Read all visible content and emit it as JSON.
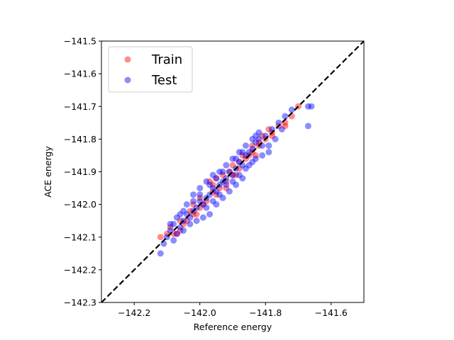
{
  "chart_data": {
    "type": "scatter",
    "title": "",
    "xlabel": "Reference energy",
    "ylabel": "ACE energy",
    "xlim": [
      -142.3,
      -141.5
    ],
    "ylim": [
      -142.3,
      -141.5
    ],
    "xticks": [
      -142.2,
      -142.0,
      -141.8,
      -141.6
    ],
    "yticks": [
      -142.3,
      -142.2,
      -142.1,
      -142.0,
      -141.9,
      -141.8,
      -141.7,
      -141.6,
      -141.5
    ],
    "xtick_labels": [
      "−142.2",
      "−142.0",
      "−141.8",
      "−141.6"
    ],
    "ytick_labels": [
      "−142.3",
      "−142.2",
      "−142.1",
      "−142.0",
      "−141.9",
      "−141.8",
      "−141.7",
      "−141.6",
      "−141.5"
    ],
    "grid": false,
    "legend_position": "top-left",
    "reference_line": {
      "style": "dashed",
      "color": "#000000",
      "from": [
        -142.3,
        -142.3
      ],
      "to": [
        -141.5,
        -141.5
      ]
    },
    "series": [
      {
        "name": "Train",
        "color": "#ff0000",
        "points": [
          [
            -142.12,
            -142.1
          ],
          [
            -142.1,
            -142.09
          ],
          [
            -142.08,
            -142.09
          ],
          [
            -142.06,
            -142.08
          ],
          [
            -142.04,
            -142.05
          ],
          [
            -142.02,
            -142.03
          ],
          [
            -142.0,
            -142.01
          ],
          [
            -141.98,
            -141.99
          ],
          [
            -141.96,
            -141.96
          ],
          [
            -141.94,
            -141.95
          ],
          [
            -141.92,
            -141.93
          ],
          [
            -141.9,
            -141.91
          ],
          [
            -141.88,
            -141.89
          ],
          [
            -141.86,
            -141.86
          ],
          [
            -141.84,
            -141.84
          ],
          [
            -141.82,
            -141.82
          ],
          [
            -141.8,
            -141.8
          ],
          [
            -141.78,
            -141.78
          ],
          [
            -141.76,
            -141.76
          ],
          [
            -141.74,
            -141.75
          ],
          [
            -141.72,
            -141.73
          ],
          [
            -141.7,
            -141.7
          ],
          [
            -141.74,
            -141.76
          ],
          [
            -141.78,
            -141.79
          ],
          [
            -141.82,
            -141.81
          ],
          [
            -141.85,
            -141.85
          ],
          [
            -141.88,
            -141.87
          ],
          [
            -141.91,
            -141.9
          ],
          [
            -141.95,
            -141.92
          ],
          [
            -141.97,
            -141.93
          ],
          [
            -142.0,
            -141.98
          ],
          [
            -142.03,
            -142.02
          ],
          [
            -142.06,
            -142.05
          ],
          [
            -142.09,
            -142.07
          ],
          [
            -142.05,
            -142.06
          ],
          [
            -141.99,
            -142.0
          ],
          [
            -141.93,
            -141.91
          ],
          [
            -141.87,
            -141.85
          ],
          [
            -141.81,
            -141.79
          ],
          [
            -141.83,
            -141.85
          ],
          [
            -141.89,
            -141.91
          ],
          [
            -141.95,
            -141.97
          ],
          [
            -142.01,
            -142.03
          ],
          [
            -142.07,
            -142.09
          ],
          [
            -141.96,
            -141.94
          ],
          [
            -141.9,
            -141.88
          ],
          [
            -141.84,
            -141.82
          ],
          [
            -141.79,
            -141.77
          ],
          [
            -141.92,
            -141.95
          ],
          [
            -142.02,
            -142.0
          ]
        ]
      },
      {
        "name": "Test",
        "color": "#0000ff",
        "points": [
          [
            -142.12,
            -142.15
          ],
          [
            -142.1,
            -142.1
          ],
          [
            -142.09,
            -142.08
          ],
          [
            -142.08,
            -142.06
          ],
          [
            -142.07,
            -142.09
          ],
          [
            -142.06,
            -142.07
          ],
          [
            -142.05,
            -142.05
          ],
          [
            -142.04,
            -142.03
          ],
          [
            -142.03,
            -142.04
          ],
          [
            -142.02,
            -142.02
          ],
          [
            -142.01,
            -142.01
          ],
          [
            -142.0,
            -141.99
          ],
          [
            -141.99,
            -142.0
          ],
          [
            -141.98,
            -141.98
          ],
          [
            -141.97,
            -141.97
          ],
          [
            -141.96,
            -141.95
          ],
          [
            -141.95,
            -141.96
          ],
          [
            -141.94,
            -141.94
          ],
          [
            -141.93,
            -141.93
          ],
          [
            -141.92,
            -141.92
          ],
          [
            -141.91,
            -141.9
          ],
          [
            -141.9,
            -141.91
          ],
          [
            -141.89,
            -141.89
          ],
          [
            -141.88,
            -141.87
          ],
          [
            -141.87,
            -141.88
          ],
          [
            -141.86,
            -141.85
          ],
          [
            -141.85,
            -141.84
          ],
          [
            -141.84,
            -141.83
          ],
          [
            -141.83,
            -141.81
          ],
          [
            -141.82,
            -141.8
          ],
          [
            -141.81,
            -141.82
          ],
          [
            -141.8,
            -141.79
          ],
          [
            -141.78,
            -141.77
          ],
          [
            -141.76,
            -141.75
          ],
          [
            -141.75,
            -141.77
          ],
          [
            -141.74,
            -141.73
          ],
          [
            -141.72,
            -141.71
          ],
          [
            -141.67,
            -141.7
          ],
          [
            -141.66,
            -141.7
          ],
          [
            -141.67,
            -141.76
          ],
          [
            -141.77,
            -141.8
          ],
          [
            -141.79,
            -141.82
          ],
          [
            -141.83,
            -141.79
          ],
          [
            -141.87,
            -141.84
          ],
          [
            -141.89,
            -141.86
          ],
          [
            -141.93,
            -141.9
          ],
          [
            -141.95,
            -141.92
          ],
          [
            -141.97,
            -141.94
          ],
          [
            -142.0,
            -141.97
          ],
          [
            -142.02,
            -141.99
          ],
          [
            -142.05,
            -142.02
          ],
          [
            -142.07,
            -142.04
          ],
          [
            -142.09,
            -142.06
          ],
          [
            -141.99,
            -142.04
          ],
          [
            -141.97,
            -142.03
          ],
          [
            -141.95,
            -142.0
          ],
          [
            -141.93,
            -141.98
          ],
          [
            -141.91,
            -141.96
          ],
          [
            -141.89,
            -141.94
          ],
          [
            -141.87,
            -141.92
          ],
          [
            -141.85,
            -141.88
          ],
          [
            -141.83,
            -141.86
          ],
          [
            -141.81,
            -141.85
          ],
          [
            -141.79,
            -141.84
          ],
          [
            -142.03,
            -142.06
          ],
          [
            -142.01,
            -142.05
          ],
          [
            -141.98,
            -142.01
          ],
          [
            -141.96,
            -141.99
          ],
          [
            -141.94,
            -141.97
          ],
          [
            -141.92,
            -141.94
          ],
          [
            -141.9,
            -141.93
          ],
          [
            -141.88,
            -141.91
          ],
          [
            -141.86,
            -141.89
          ],
          [
            -141.84,
            -141.87
          ],
          [
            -142.06,
            -142.03
          ],
          [
            -142.04,
            -142.0
          ],
          [
            -142.02,
            -141.97
          ],
          [
            -142.0,
            -141.95
          ],
          [
            -141.98,
            -141.93
          ],
          [
            -141.96,
            -141.91
          ],
          [
            -141.94,
            -141.9
          ],
          [
            -141.92,
            -141.88
          ],
          [
            -141.9,
            -141.86
          ],
          [
            -141.88,
            -141.84
          ],
          [
            -141.86,
            -141.82
          ],
          [
            -141.84,
            -141.8
          ],
          [
            -141.82,
            -141.78
          ],
          [
            -142.08,
            -142.11
          ],
          [
            -142.11,
            -142.12
          ],
          [
            -142.05,
            -142.08
          ]
        ]
      }
    ]
  }
}
